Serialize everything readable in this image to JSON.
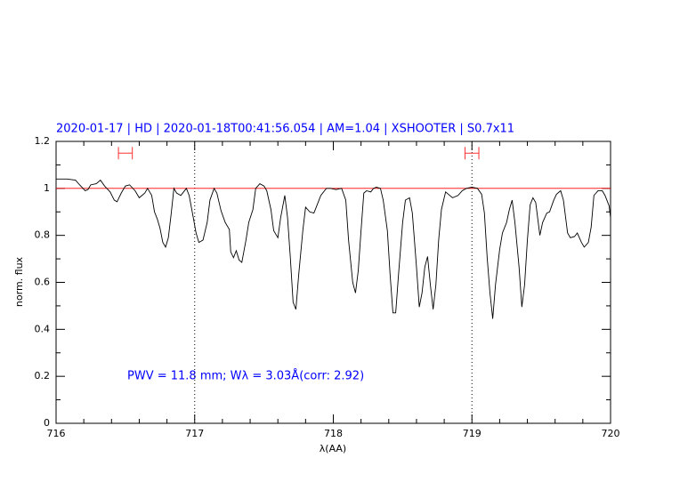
{
  "chart_data": {
    "type": "line",
    "title": "2020-01-17 | HD | 2020-01-18T00:41:56.054 | AM=1.04 | XSHOOTER | S0.7x11",
    "annotation": "PWV = 11.8 mm; Wλ = 3.03Å(corr: 2.92)",
    "xlabel": "λ(AA)",
    "ylabel": "norm. flux",
    "color": "#000000",
    "x": [
      716.0,
      716.08,
      716.14,
      716.17,
      716.21,
      716.23,
      716.25,
      716.29,
      716.32,
      716.35,
      716.39,
      716.42,
      716.44,
      716.47,
      716.5,
      716.53,
      716.57,
      716.6,
      716.64,
      716.66,
      716.69,
      716.71,
      716.73,
      716.75,
      716.77,
      716.79,
      716.81,
      716.83,
      716.85,
      716.87,
      716.9,
      716.92,
      716.94,
      716.96,
      716.99,
      717.01,
      717.03,
      717.06,
      717.09,
      717.11,
      717.14,
      717.16,
      717.19,
      717.22,
      717.25,
      717.26,
      717.28,
      717.3,
      717.32,
      717.34,
      717.37,
      717.39,
      717.42,
      717.44,
      717.47,
      717.5,
      717.52,
      717.55,
      717.57,
      717.6,
      717.62,
      717.65,
      717.67,
      717.69,
      717.71,
      717.73,
      717.75,
      717.78,
      717.8,
      717.83,
      717.86,
      717.88,
      717.91,
      717.95,
      717.98,
      718.02,
      718.06,
      718.09,
      718.11,
      718.14,
      718.16,
      718.18,
      718.2,
      718.22,
      718.24,
      718.27,
      718.29,
      718.31,
      718.34,
      718.36,
      718.39,
      718.41,
      718.43,
      718.45,
      718.47,
      718.5,
      718.52,
      718.55,
      718.57,
      718.6,
      718.62,
      718.64,
      718.66,
      718.68,
      718.7,
      718.72,
      718.74,
      718.76,
      718.78,
      718.81,
      718.83,
      718.86,
      718.9,
      718.93,
      718.96,
      719.0,
      719.04,
      719.07,
      719.09,
      719.11,
      719.13,
      719.15,
      719.17,
      719.2,
      719.22,
      719.25,
      719.27,
      719.29,
      719.31,
      719.34,
      719.36,
      719.38,
      719.4,
      719.42,
      719.44,
      719.46,
      719.49,
      719.51,
      719.54,
      719.56,
      719.59,
      719.61,
      719.64,
      719.66,
      719.69,
      719.71,
      719.74,
      719.76,
      719.79,
      719.81,
      719.84,
      719.86,
      719.88,
      719.91,
      719.94,
      719.96,
      719.99,
      720.0
    ],
    "values": [
      1.04,
      1.04,
      1.035,
      1.015,
      0.99,
      0.995,
      1.015,
      1.02,
      1.035,
      1.01,
      0.985,
      0.95,
      0.943,
      0.98,
      1.01,
      1.015,
      0.99,
      0.96,
      0.98,
      1.0,
      0.97,
      0.9,
      0.87,
      0.83,
      0.77,
      0.75,
      0.79,
      0.89,
      1.0,
      0.98,
      0.97,
      0.985,
      1.0,
      0.97,
      0.875,
      0.81,
      0.77,
      0.78,
      0.855,
      0.95,
      1.0,
      0.98,
      0.905,
      0.855,
      0.825,
      0.73,
      0.705,
      0.735,
      0.695,
      0.685,
      0.78,
      0.855,
      0.91,
      1.0,
      1.02,
      1.01,
      0.99,
      0.91,
      0.82,
      0.79,
      0.875,
      0.97,
      0.875,
      0.705,
      0.515,
      0.485,
      0.63,
      0.82,
      0.92,
      0.9,
      0.895,
      0.925,
      0.97,
      1.0,
      1.0,
      0.995,
      1.0,
      0.95,
      0.78,
      0.6,
      0.555,
      0.65,
      0.82,
      0.98,
      0.99,
      0.985,
      1.0,
      1.005,
      1.0,
      0.95,
      0.82,
      0.63,
      0.47,
      0.47,
      0.63,
      0.855,
      0.95,
      0.96,
      0.895,
      0.665,
      0.495,
      0.555,
      0.665,
      0.71,
      0.59,
      0.485,
      0.59,
      0.78,
      0.91,
      0.985,
      0.975,
      0.96,
      0.97,
      0.99,
      1.0,
      1.005,
      1.0,
      0.975,
      0.895,
      0.705,
      0.555,
      0.445,
      0.59,
      0.74,
      0.81,
      0.855,
      0.91,
      0.95,
      0.855,
      0.665,
      0.495,
      0.59,
      0.78,
      0.93,
      0.96,
      0.94,
      0.8,
      0.855,
      0.895,
      0.9,
      0.95,
      0.975,
      0.99,
      0.95,
      0.81,
      0.79,
      0.795,
      0.81,
      0.77,
      0.75,
      0.77,
      0.835,
      0.97,
      0.99,
      0.99,
      0.97,
      0.925,
      0.875
    ],
    "hline": 1,
    "hline_color": "#ff0000",
    "vlines": [
      717,
      719
    ],
    "error_bars": [
      {
        "x": [
          716.45,
          716.55
        ],
        "y": 1.15
      },
      {
        "x": [
          718.95,
          719.05
        ],
        "y": 1.15
      }
    ],
    "error_bar_color": "#ff3030",
    "xlim": [
      716,
      720
    ],
    "xticks": [
      716,
      717,
      718,
      719,
      720
    ],
    "xminorticks": [
      716.2,
      716.4,
      716.6,
      716.8,
      717.2,
      717.4,
      717.6,
      717.8,
      718.2,
      718.4,
      718.6,
      718.8,
      719.2,
      719.4,
      719.6,
      719.8
    ],
    "ylim": [
      0,
      1.2
    ],
    "yticks": [
      0,
      0.2,
      0.4,
      0.6,
      0.8,
      1,
      1.2
    ],
    "yminorticks": [
      0.1,
      0.3,
      0.5,
      0.7,
      0.9,
      1.1
    ]
  }
}
